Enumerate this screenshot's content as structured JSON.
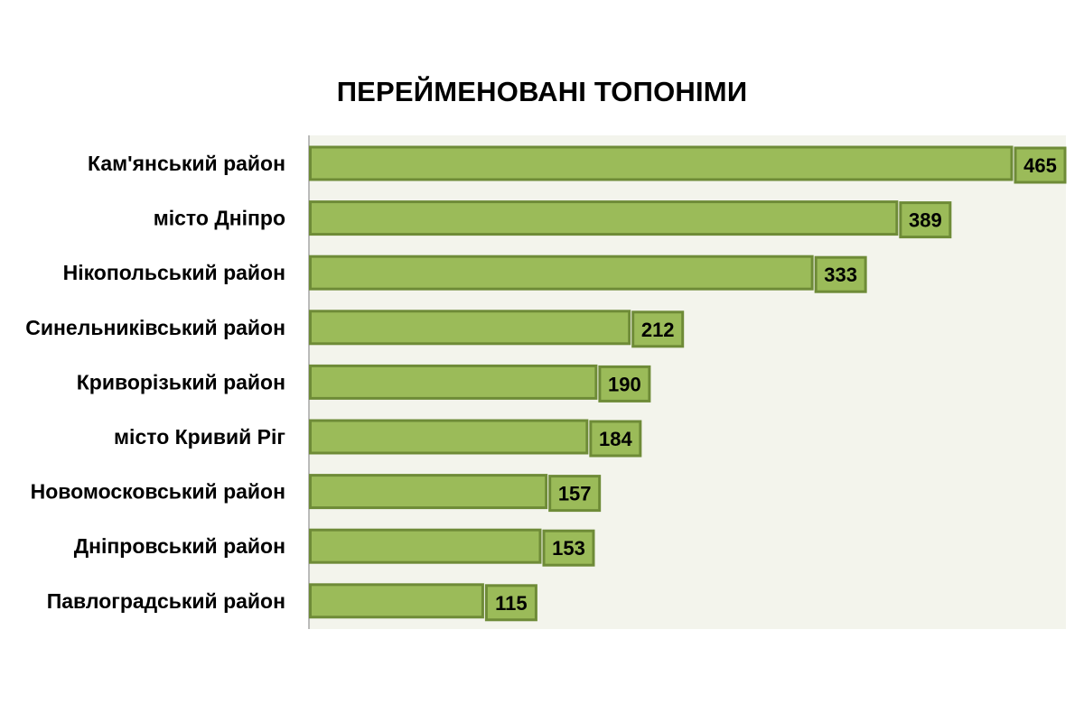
{
  "chart_data": {
    "type": "bar",
    "orientation": "horizontal",
    "title": "ПЕРЕЙМЕНОВАНІ ТОПОНІМИ",
    "categories": [
      "Кам'янський район",
      "місто Дніпро",
      "Нікопольський район",
      "Синельниківський район",
      "Криворізький район",
      "місто Кривий Ріг",
      "Новомосковський район",
      "Дніпровський район",
      "Павлоградський район"
    ],
    "values": [
      465,
      389,
      333,
      212,
      190,
      184,
      157,
      153,
      115
    ],
    "xlim": [
      0,
      465
    ],
    "grid": false,
    "legend": "none",
    "colors": {
      "bar_fill": "#9bbb59",
      "bar_stroke": "#6e8b37",
      "label_box_fill": "#9bbb59",
      "label_box_stroke": "#6e8b37",
      "plot_background": "#f3f4ec",
      "axis": "#a6a6a6"
    }
  }
}
